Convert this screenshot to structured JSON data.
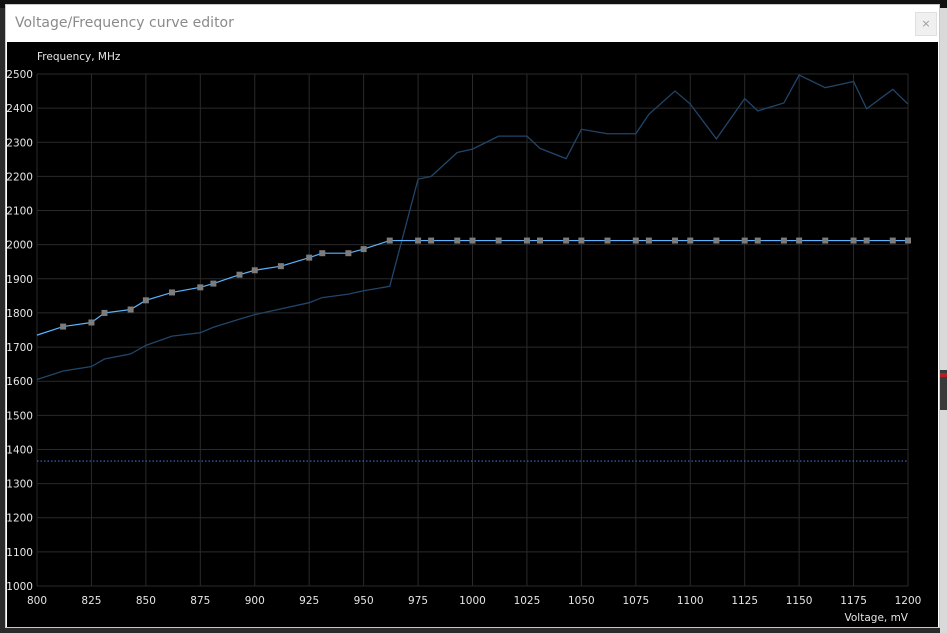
{
  "window": {
    "title": "Voltage/Frequency curve editor",
    "close_label": "×"
  },
  "colors": {
    "curve": "#5ab4ff",
    "default_curve": "#21466a",
    "reference_line": "#2f6fd1",
    "point": "#7c7c7c",
    "grid": "#2a2a2a",
    "text": "#e6e6e6"
  },
  "chart_data": {
    "type": "line",
    "ylabel": "Frequency, MHz",
    "xlabel": "Voltage, mV",
    "xlim": [
      800,
      1200
    ],
    "ylim": [
      1000,
      2500
    ],
    "x_ticks": [
      800,
      825,
      850,
      875,
      900,
      925,
      950,
      975,
      1000,
      1025,
      1050,
      1075,
      1100,
      1125,
      1150,
      1175,
      1200
    ],
    "y_ticks": [
      1000,
      1100,
      1200,
      1300,
      1400,
      1500,
      1600,
      1700,
      1800,
      1900,
      2000,
      2100,
      2200,
      2300,
      2400,
      2500
    ],
    "grid": true,
    "series": [
      {
        "role": "editable-curve",
        "points": [
          [
            800,
            1735
          ],
          [
            812,
            1760
          ],
          [
            825,
            1772
          ],
          [
            831,
            1800
          ],
          [
            843,
            1810
          ],
          [
            850,
            1837
          ],
          [
            862,
            1860
          ],
          [
            875,
            1875
          ],
          [
            881,
            1886
          ],
          [
            893,
            1912
          ],
          [
            900,
            1925
          ],
          [
            912,
            1937
          ],
          [
            925,
            1962
          ],
          [
            931,
            1975
          ],
          [
            943,
            1975
          ],
          [
            950,
            1987
          ],
          [
            962,
            2012
          ],
          [
            975,
            2012
          ],
          [
            981,
            2012
          ],
          [
            993,
            2012
          ],
          [
            1000,
            2012
          ],
          [
            1012,
            2012
          ],
          [
            1025,
            2012
          ],
          [
            1031,
            2012
          ],
          [
            1043,
            2012
          ],
          [
            1050,
            2012
          ],
          [
            1062,
            2012
          ],
          [
            1075,
            2012
          ],
          [
            1081,
            2012
          ],
          [
            1093,
            2012
          ],
          [
            1100,
            2012
          ],
          [
            1112,
            2012
          ],
          [
            1125,
            2012
          ],
          [
            1131,
            2012
          ],
          [
            1143,
            2012
          ],
          [
            1150,
            2012
          ],
          [
            1162,
            2012
          ],
          [
            1175,
            2012
          ],
          [
            1181,
            2012
          ],
          [
            1193,
            2012
          ],
          [
            1200,
            2012
          ]
        ]
      },
      {
        "role": "default-curve",
        "points": [
          [
            800,
            1605
          ],
          [
            812,
            1630
          ],
          [
            825,
            1643
          ],
          [
            831,
            1665
          ],
          [
            843,
            1680
          ],
          [
            850,
            1705
          ],
          [
            862,
            1732
          ],
          [
            875,
            1742
          ],
          [
            881,
            1758
          ],
          [
            893,
            1782
          ],
          [
            900,
            1795
          ],
          [
            912,
            1812
          ],
          [
            925,
            1830
          ],
          [
            931,
            1845
          ],
          [
            943,
            1855
          ],
          [
            950,
            1865
          ],
          [
            962,
            1878
          ],
          [
            975,
            2192
          ],
          [
            981,
            2200
          ],
          [
            993,
            2270
          ],
          [
            1000,
            2280
          ],
          [
            1012,
            2318
          ],
          [
            1025,
            2318
          ],
          [
            1031,
            2282
          ],
          [
            1043,
            2252
          ],
          [
            1050,
            2338
          ],
          [
            1062,
            2325
          ],
          [
            1075,
            2325
          ],
          [
            1081,
            2382
          ],
          [
            1093,
            2450
          ],
          [
            1100,
            2412
          ],
          [
            1112,
            2310
          ],
          [
            1125,
            2428
          ],
          [
            1131,
            2392
          ],
          [
            1143,
            2415
          ],
          [
            1150,
            2497
          ],
          [
            1162,
            2460
          ],
          [
            1175,
            2478
          ],
          [
            1181,
            2398
          ],
          [
            1193,
            2455
          ],
          [
            1200,
            2412
          ]
        ]
      },
      {
        "role": "reference-line",
        "style": "dotted",
        "y": 1366
      }
    ]
  }
}
